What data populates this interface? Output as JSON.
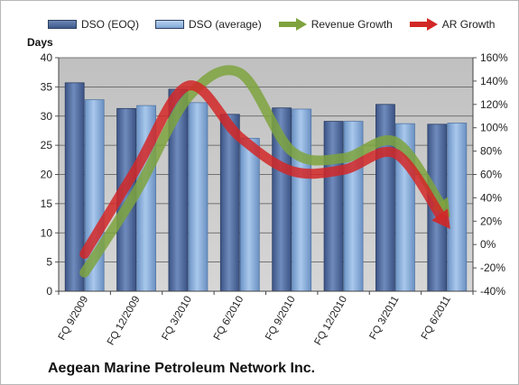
{
  "company": "Aegean Marine Petroleum Network Inc.",
  "chart_data": {
    "type": "bar",
    "categories": [
      "FQ 9/2009",
      "FQ 12/2009",
      "FQ 3/2010",
      "FQ 6/2010",
      "FQ 9/2010",
      "FQ 12/2010",
      "FQ 3/2011",
      "FQ 6/2011"
    ],
    "y_left_label": "Days",
    "y_left_range": [
      0,
      40
    ],
    "y_left_ticks": [
      0,
      5,
      10,
      15,
      20,
      25,
      30,
      35,
      40
    ],
    "y_right_range": [
      -40,
      160
    ],
    "y_right_ticks": [
      "-40%",
      "-20%",
      "0%",
      "20%",
      "40%",
      "60%",
      "80%",
      "100%",
      "120%",
      "140%",
      "160%"
    ],
    "grid": true,
    "legend_position": "top",
    "series": [
      {
        "name": "DSO (EOQ)",
        "type": "bar",
        "axis": "left",
        "color": "#4f6b9e",
        "values": [
          35.7,
          31.3,
          34.6,
          30.3,
          31.4,
          29.1,
          32.0,
          28.6
        ]
      },
      {
        "name": "DSO (average)",
        "type": "bar",
        "axis": "left",
        "color": "#8fb4e0",
        "values": [
          32.8,
          31.8,
          32.3,
          26.2,
          31.2,
          29.1,
          28.7,
          28.8
        ]
      },
      {
        "name": "Revenue Growth",
        "type": "line",
        "axis": "right",
        "unit": "%",
        "color": "#7ea33e",
        "values": [
          -24,
          45,
          126,
          147,
          80,
          74,
          88,
          27
        ]
      },
      {
        "name": "AR Growth",
        "type": "line",
        "axis": "right",
        "unit": "%",
        "color": "#d22727",
        "values": [
          -8,
          65,
          136,
          92,
          63,
          64,
          78,
          17
        ]
      }
    ]
  }
}
